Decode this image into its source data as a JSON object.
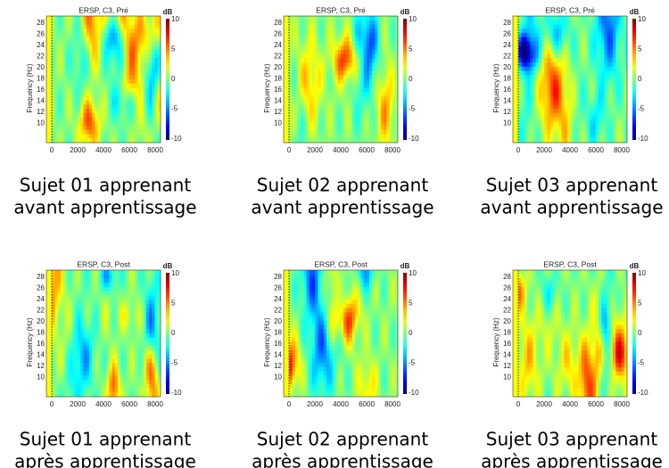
{
  "panels": [
    {
      "title": "ERSP, C3, Pré",
      "caption": [
        "Sujet 01 apprenant",
        "avant apprentissage"
      ]
    },
    {
      "title": "ERSP, C3, Pré",
      "caption": [
        "Sujet 02 apprenant",
        "avant apprentissage"
      ]
    },
    {
      "title": "ERSP, C3, Pré",
      "caption": [
        "Sujet 03 apprenant",
        "avant apprentissage"
      ]
    },
    {
      "title": "ERSP, C3, Post",
      "caption": [
        "Sujet 01 apprenant",
        "après apprentissage"
      ]
    },
    {
      "title": "ERSP, C3, Post",
      "caption": [
        "Sujet 02 apprenant",
        "après apprentissage"
      ]
    },
    {
      "title": "ERSP, C3, Post",
      "caption": [
        "Sujet 03 apprenant",
        "après apprentissage"
      ]
    }
  ],
  "y_label": "Frequency (Hz)",
  "colorbar_label": "dB",
  "xticks": [
    0,
    2000,
    4000,
    6000,
    8000
  ],
  "yticks": [
    28,
    26,
    24,
    22,
    20,
    18,
    16,
    14,
    12,
    10
  ],
  "colorbar_ticks": [
    10,
    5,
    0,
    -5,
    -10
  ]
}
